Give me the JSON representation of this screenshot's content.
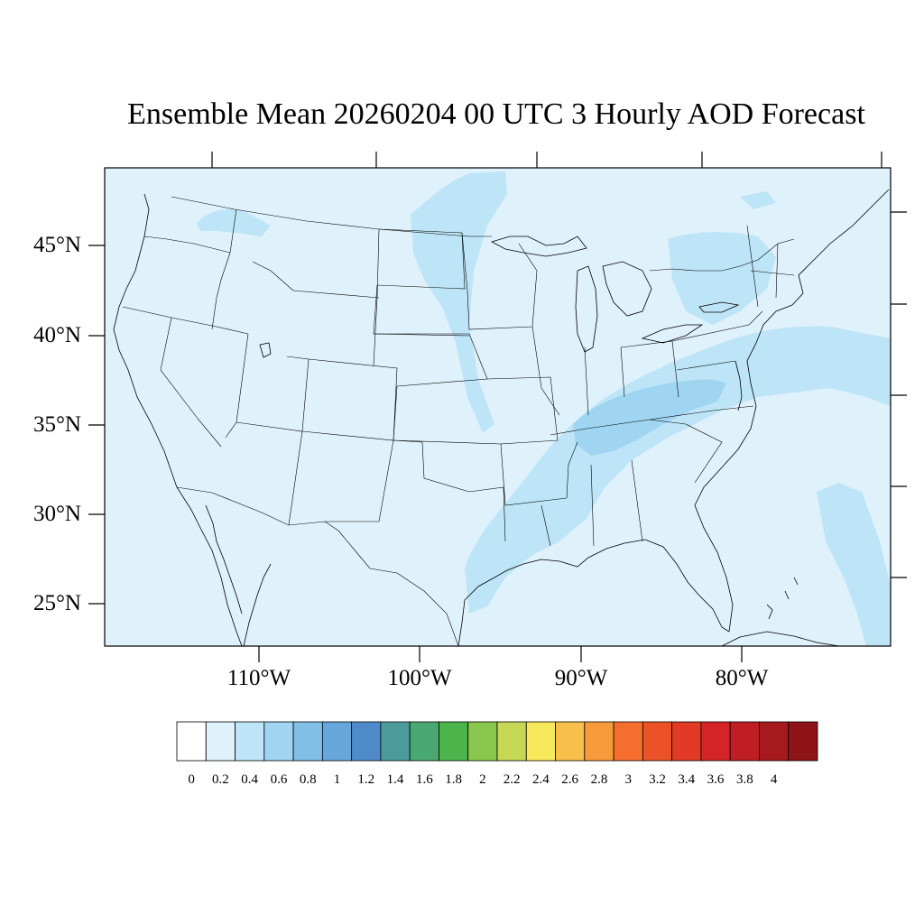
{
  "title": "Ensemble Mean 20260204 00 UTC 3 Hourly AOD Forecast",
  "map": {
    "region": "Continental United States",
    "background_color": "#dff1fb",
    "lat_ticks": [
      "45°N",
      "40°N",
      "35°N",
      "30°N",
      "25°N"
    ],
    "lon_ticks": [
      "110°W",
      "100°W",
      "90°W",
      "80°W"
    ]
  },
  "colorbar": {
    "labels": [
      "0",
      "0.2",
      "0.4",
      "0.6",
      "0.8",
      "1",
      "1.2",
      "1.4",
      "1.6",
      "1.8",
      "2",
      "2.2",
      "2.4",
      "2.6",
      "2.8",
      "3",
      "3.2",
      "3.4",
      "3.6",
      "3.8",
      "4"
    ],
    "colors": [
      "#ffffff",
      "#dff1fb",
      "#bde5f7",
      "#a0d5f2",
      "#82bfe6",
      "#66a6da",
      "#4e8bc8",
      "#4b9b9b",
      "#4aa872",
      "#4bb54b",
      "#8ac74e",
      "#c6d856",
      "#f8e85c",
      "#f8c04a",
      "#f79a3c",
      "#f56e2e",
      "#ec5228",
      "#e23a24",
      "#d42428",
      "#bf1e24",
      "#a61a1e",
      "#8e1418"
    ]
  }
}
